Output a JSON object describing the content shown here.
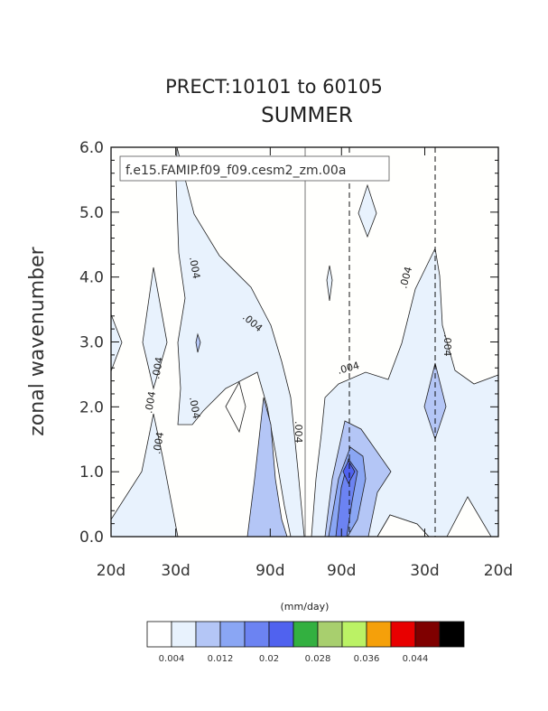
{
  "chart_data": {
    "type": "heatmap",
    "title": "PRECT:10101 to 60105",
    "subtitle": "SUMMER",
    "case_label": "f.e15.FAMIP.f09_f09.cesm2_zm.00a",
    "ylabel": "zonal wavenumber",
    "ylim": [
      0,
      6
    ],
    "y_ticks": [
      "0.0",
      "1.0",
      "2.0",
      "3.0",
      "4.0",
      "5.0",
      "6.0"
    ],
    "x_ticks": [
      "20d",
      "30d",
      "90d",
      "90d",
      "30d",
      "20d"
    ],
    "x_tick_fractions": [
      0,
      0.167,
      0.411,
      0.595,
      0.81,
      1
    ],
    "period_lines_dashed": [
      "90d",
      "30d"
    ],
    "contour_labels": [
      ".004",
      ".004",
      ".004",
      ".004",
      ".004",
      ".004",
      ".004",
      ".004",
      ".004",
      ".004"
    ],
    "units": "(mm/day)",
    "colorbar": {
      "colors": [
        "#ffffff",
        "#e8f2fd",
        "#b4c6f6",
        "#8aa6f4",
        "#6c83f2",
        "#5062ef",
        "#33b040",
        "#a8cf6e",
        "#bbf265",
        "#f5a00a",
        "#e80000",
        "#7f0000",
        "#000000"
      ],
      "tick_labels": [
        "0.004",
        "0.012",
        "0.02",
        "0.028",
        "0.036",
        "0.044"
      ]
    }
  }
}
